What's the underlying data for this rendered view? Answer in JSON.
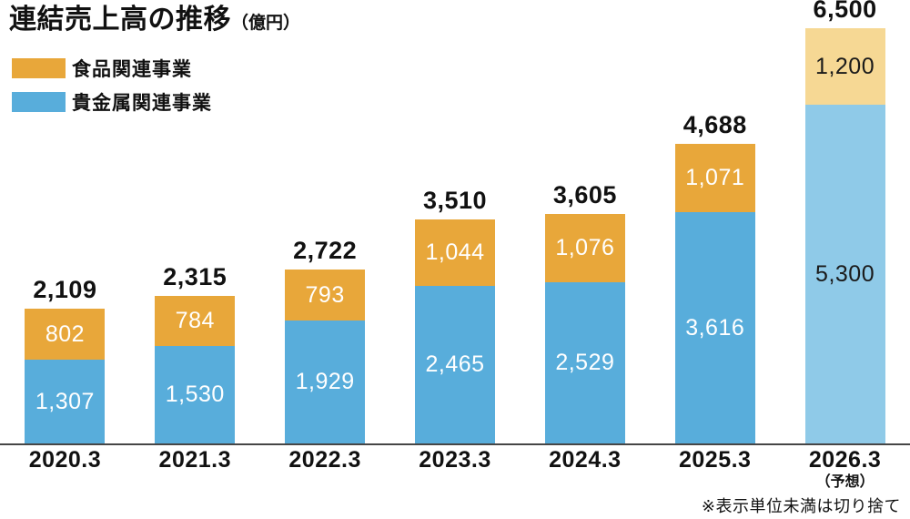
{
  "title": {
    "main": "連結売上高の推移",
    "unit": "（億円）"
  },
  "legend": [
    {
      "label": "食品関連事業",
      "color": "#E8A73A"
    },
    {
      "label": "貴金属関連事業",
      "color": "#58ADDB"
    }
  ],
  "footnote": "※表示単位未満は切り捨て",
  "chart_data": {
    "type": "bar",
    "stacked": true,
    "title": "連結売上高の推移（億円）",
    "unit": "億円",
    "categories": [
      "2020.3",
      "2021.3",
      "2022.3",
      "2023.3",
      "2024.3",
      "2025.3",
      "2026.3"
    ],
    "category_sublabels": [
      "",
      "",
      "",
      "",
      "",
      "",
      "（予想）"
    ],
    "series": [
      {
        "name": "食品関連事業",
        "position": "top",
        "values": [
          802,
          784,
          793,
          1044,
          1076,
          1071,
          1200
        ],
        "color": "#E8A73A",
        "forecast_color": "#F6D894"
      },
      {
        "name": "貴金属関連事業",
        "position": "bottom",
        "values": [
          1307,
          1530,
          1929,
          2465,
          2529,
          3616,
          5300
        ],
        "color": "#58ADDB",
        "forecast_color": "#8FCAE8"
      }
    ],
    "totals": [
      2109,
      2315,
      2722,
      3510,
      3605,
      4688,
      6500
    ],
    "forecast_index": 6,
    "ylim": [
      0,
      6500
    ],
    "value_label_color": "#ffffff",
    "forecast_value_label_color": "#1a1a1a",
    "total_label_color": "#111111",
    "legend_position": "top-left",
    "grid": false,
    "axis_line_color": "#464646"
  }
}
